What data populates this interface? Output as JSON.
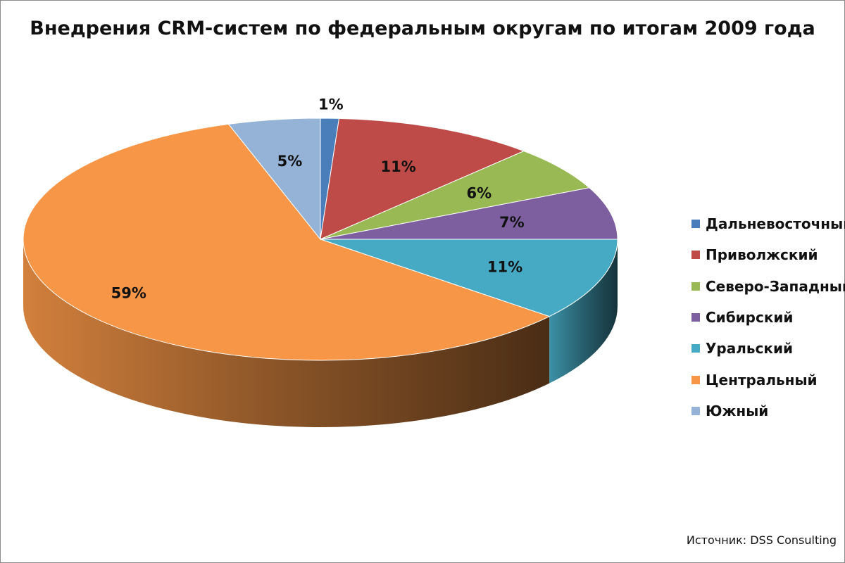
{
  "chart_data": {
    "type": "pie",
    "title": "Внедрения CRM-систем по федеральным округам по итогам 2009 года",
    "categories": [
      "Дальневосточный",
      "Приволжский",
      "Северо-Западный",
      "Сибирский",
      "Уральский",
      "Центральный",
      "Южный"
    ],
    "values": [
      1,
      11,
      6,
      7,
      11,
      59,
      5
    ],
    "labels": [
      "1%",
      "11%",
      "6%",
      "7%",
      "11%",
      "59%",
      "5%"
    ],
    "colors": [
      "#4a7ebb",
      "#be4b48",
      "#98b954",
      "#7d5fa0",
      "#46aac5",
      "#f79646",
      "#95b3d7"
    ],
    "legend_position": "right",
    "three_d": true
  },
  "source": "Источник: DSS Consulting"
}
